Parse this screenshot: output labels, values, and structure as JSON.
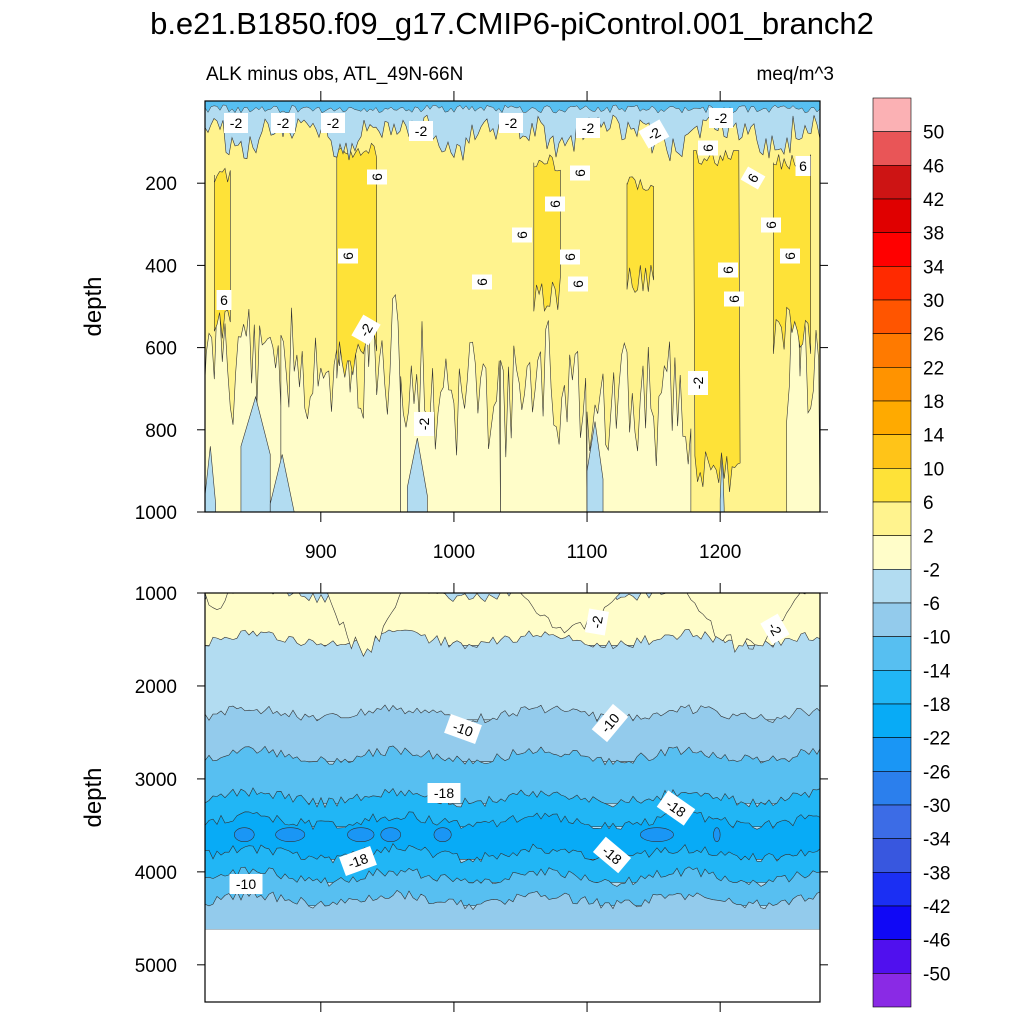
{
  "title": "b.e21.B1850.f09_g17.CMIP6-piControl.001_branch2",
  "subtitle_left": "ALK minus obs, ATL_49N-66N",
  "subtitle_right": "meq/m^3",
  "chart_data": {
    "type": "heatmap",
    "description_panels": "two stacked filled-contour depth sections sharing the x axis",
    "xlabel": "",
    "x_ticks": [
      900,
      1000,
      1100,
      1200
    ],
    "xlim": [
      813,
      1275
    ],
    "panels": [
      {
        "name": "upper",
        "ylabel": "depth",
        "ylim": [
          0,
          1000
        ],
        "y_ticks": [
          200,
          400,
          600,
          800,
          1000
        ],
        "fill_bands": [
          {
            "from_depth": 0,
            "to_depth": 60,
            "value_range": "-6 to -2"
          },
          {
            "from_depth": 60,
            "to_depth": 1000,
            "value_range": "-2 to 10"
          }
        ],
        "contour_labels": [
          "-2",
          "-2",
          "-2",
          "-2",
          "-2",
          "-2",
          "-2",
          "-2",
          "6",
          "6",
          "6",
          "6",
          "6",
          "6",
          "6",
          "6",
          "6",
          "6",
          "6",
          "6",
          "6",
          "6",
          "6",
          "6",
          "-2",
          "-2",
          "-2"
        ]
      },
      {
        "name": "lower",
        "ylabel": "depth",
        "ylim": [
          1000,
          5400
        ],
        "y_ticks": [
          1000,
          2000,
          3000,
          4000,
          5000
        ],
        "data_bottom_depth": 4620,
        "fill_bands": [
          {
            "value": "-2 to 2",
            "depth_top": 1000,
            "depth_bottom": 1500
          },
          {
            "value": "-6 to -2",
            "depth_top": 1500,
            "depth_bottom": 2300
          },
          {
            "value": "-10 to -6",
            "depth_top": 2300,
            "depth_bottom": 2750
          },
          {
            "value": "-14 to -10",
            "depth_top": 2750,
            "depth_bottom": 3200
          },
          {
            "value": "-18 to -14",
            "depth_top": 3200,
            "depth_bottom": 3450
          },
          {
            "value": "-22 to -18",
            "depth_top": 3450,
            "depth_bottom": 3800
          },
          {
            "value": "-18 to -14",
            "depth_top": 3800,
            "depth_bottom": 4050
          },
          {
            "value": "-14 to -10",
            "depth_top": 4050,
            "depth_bottom": 4300
          },
          {
            "value": "-10 to -6",
            "depth_top": 4300,
            "depth_bottom": 4620
          }
        ],
        "contour_labels": [
          "-2",
          "-2",
          "-10",
          "-10",
          "-18",
          "-18",
          "-18",
          "-18",
          "-10"
        ]
      }
    ],
    "colorbar": {
      "labels": [
        "50",
        "46",
        "42",
        "38",
        "34",
        "30",
        "26",
        "22",
        "18",
        "14",
        "10",
        "6",
        "2",
        "-2",
        "-6",
        "-10",
        "-14",
        "-18",
        "-22",
        "-26",
        "-30",
        "-34",
        "-38",
        "-42",
        "-46",
        "-50"
      ],
      "colors": [
        "#fbb1b4",
        "#e95557",
        "#cd1414",
        "#e00000",
        "#ff0000",
        "#ff2a00",
        "#ff5500",
        "#ff7a00",
        "#ff9300",
        "#ffaa00",
        "#ffc418",
        "#fee238",
        "#fff38e",
        "#fffdc9",
        "#b2dcf1",
        "#93cbec",
        "#57bff1",
        "#21b6f5",
        "#08abf6",
        "#1a96f5",
        "#2b7fed",
        "#3c6ce6",
        "#3857df",
        "#1b2ff3",
        "#1008f6",
        "#5010ee",
        "#8a2ae5"
      ]
    }
  }
}
